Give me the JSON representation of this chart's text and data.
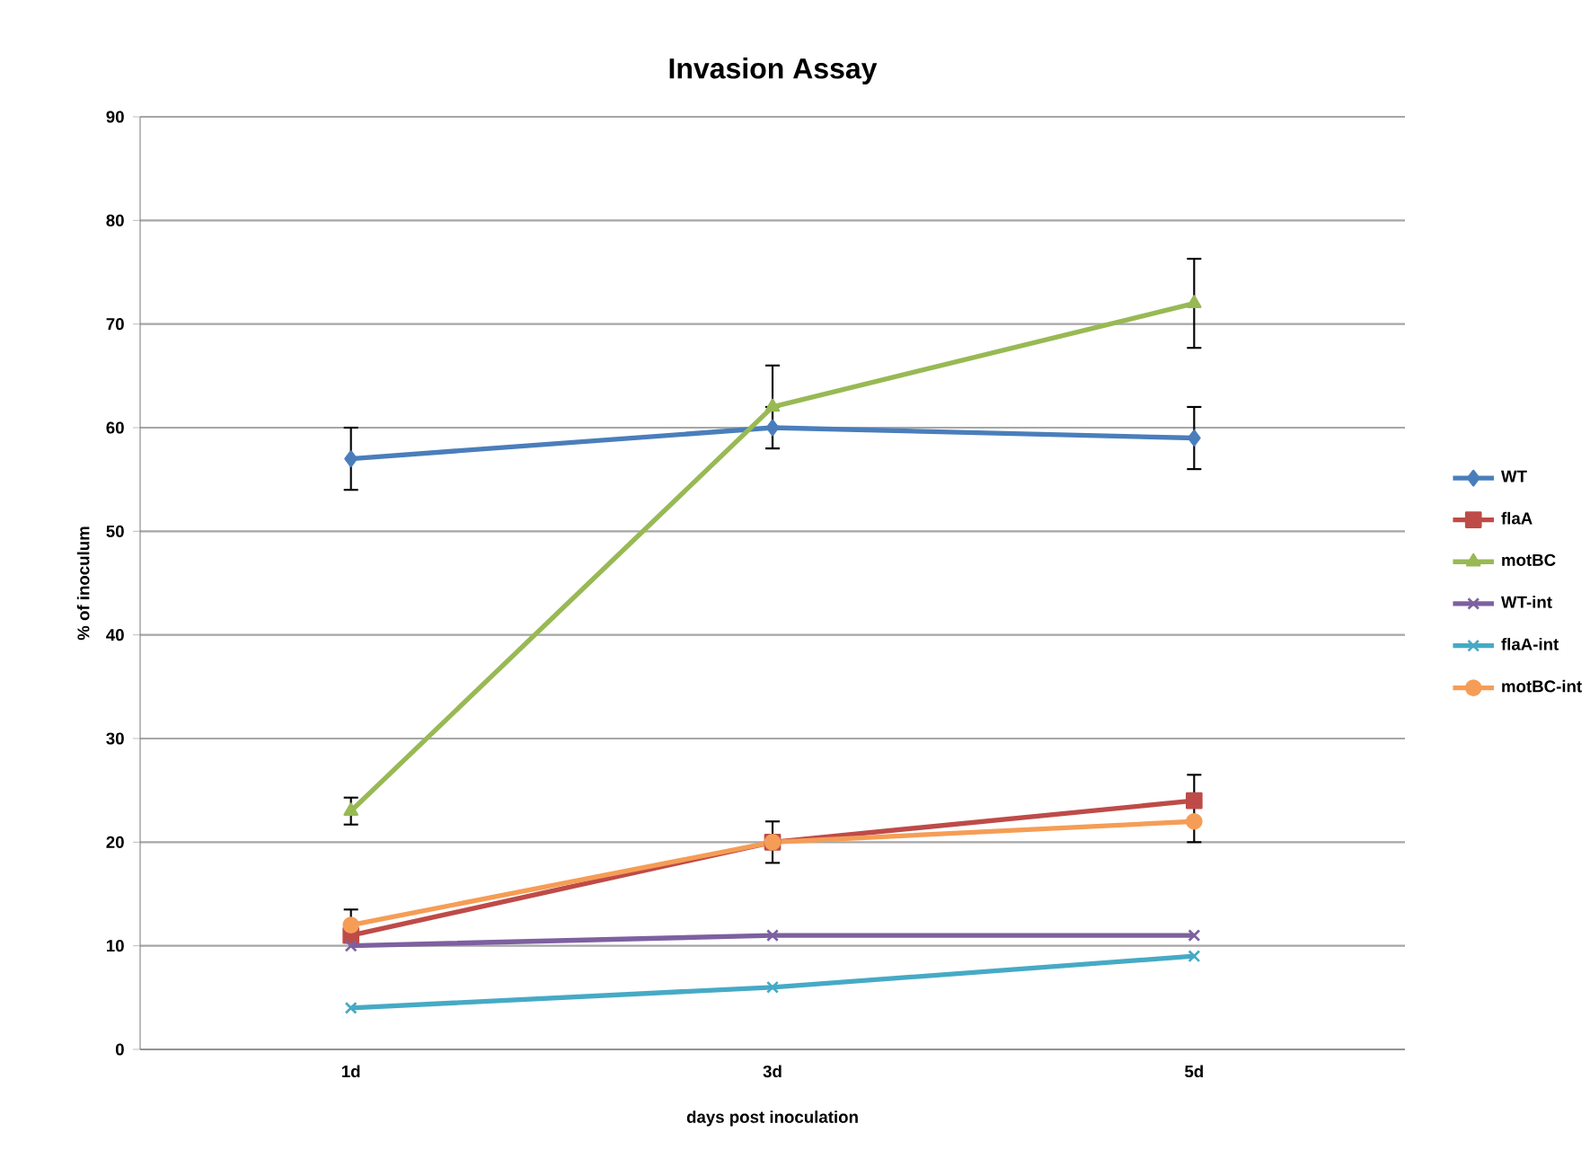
{
  "chart_data": {
    "type": "line",
    "title": "Invasion Assay",
    "xlabel": "days post inoculation",
    "ylabel": "% of inoculum",
    "categories": [
      "1d",
      "3d",
      "5d"
    ],
    "ylim": [
      0,
      90
    ],
    "yticks": [
      0,
      10,
      20,
      30,
      40,
      50,
      60,
      70,
      80,
      90
    ],
    "grid": "y",
    "legend": "right",
    "series": [
      {
        "name": "WT",
        "color": "#4a7ebb",
        "marker": "diamond",
        "values": [
          57,
          60,
          59
        ],
        "errors": [
          3,
          2,
          3
        ]
      },
      {
        "name": "flaA",
        "color": "#be4b48",
        "marker": "square",
        "values": [
          11,
          20,
          24
        ],
        "errors": [
          null,
          2,
          [
            20,
            26.5
          ]
        ]
      },
      {
        "name": "motBC",
        "color": "#98b954",
        "marker": "triangle",
        "values": [
          23,
          62,
          72
        ],
        "errors": [
          1.3,
          4,
          4.3
        ]
      },
      {
        "name": "WT-int",
        "color": "#7d60a0",
        "marker": "cross",
        "values": [
          10,
          11,
          11
        ]
      },
      {
        "name": "flaA-int",
        "color": "#46aac5",
        "marker": "cross",
        "values": [
          4,
          6,
          9
        ]
      },
      {
        "name": "motBC-int",
        "color": "#f59d56",
        "marker": "circle",
        "values": [
          12,
          20,
          22
        ],
        "errors": [
          1.5,
          null,
          null
        ]
      }
    ]
  }
}
